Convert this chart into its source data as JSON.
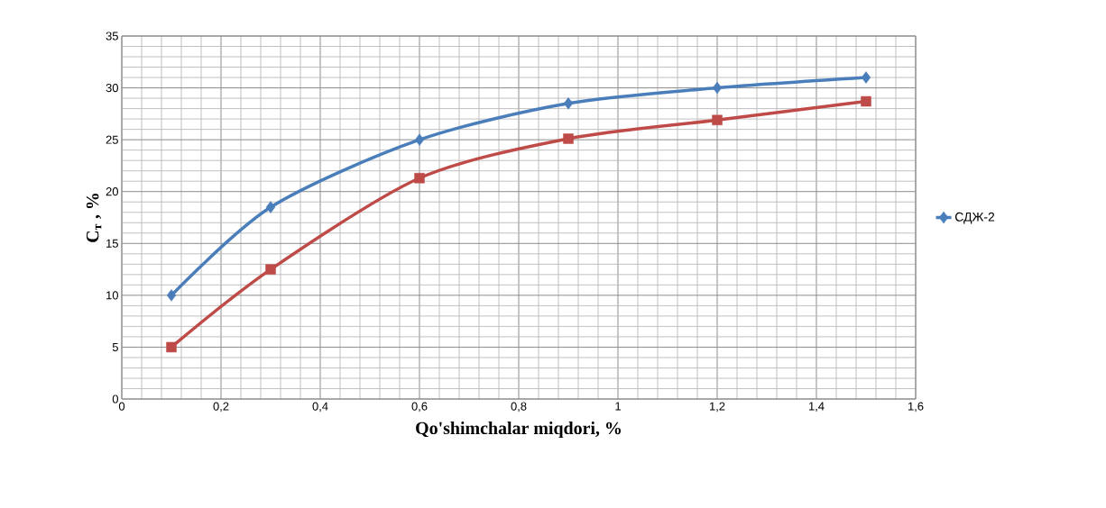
{
  "chart_data": {
    "type": "line",
    "xlabel": "Qo'shimchalar miqdori, %",
    "ylabel": "C$_{т}$ , %",
    "x": [
      0.1,
      0.3,
      0.6,
      0.9,
      1.2,
      1.5
    ],
    "series": [
      {
        "name": "СДЖ-2",
        "color": "#4a7ebb",
        "marker": "diamond",
        "values": [
          10,
          18.5,
          25,
          28.5,
          30,
          31
        ]
      },
      {
        "color": "#be4b48",
        "marker": "square",
        "values": [
          5,
          12.5,
          21.3,
          25.1,
          26.9,
          28.7
        ]
      }
    ],
    "xlim": [
      0,
      1.6
    ],
    "ylim": [
      0,
      35
    ],
    "xticks": [
      0,
      {
        "value": 0.2,
        "label": "0,2"
      },
      {
        "value": 0.4,
        "label": "0,4"
      },
      {
        "value": 0.6,
        "label": "0,6"
      },
      {
        "value": 0.8,
        "label": "0,8"
      },
      1,
      {
        "value": 1.2,
        "label": "1,2"
      },
      {
        "value": 1.4,
        "label": "1,4"
      },
      {
        "value": 1.6,
        "label": "1,6"
      }
    ],
    "yticks": [
      0,
      5,
      10,
      15,
      20,
      25,
      30,
      35
    ],
    "grid": true,
    "legend": "right",
    "line_style": "solid"
  }
}
